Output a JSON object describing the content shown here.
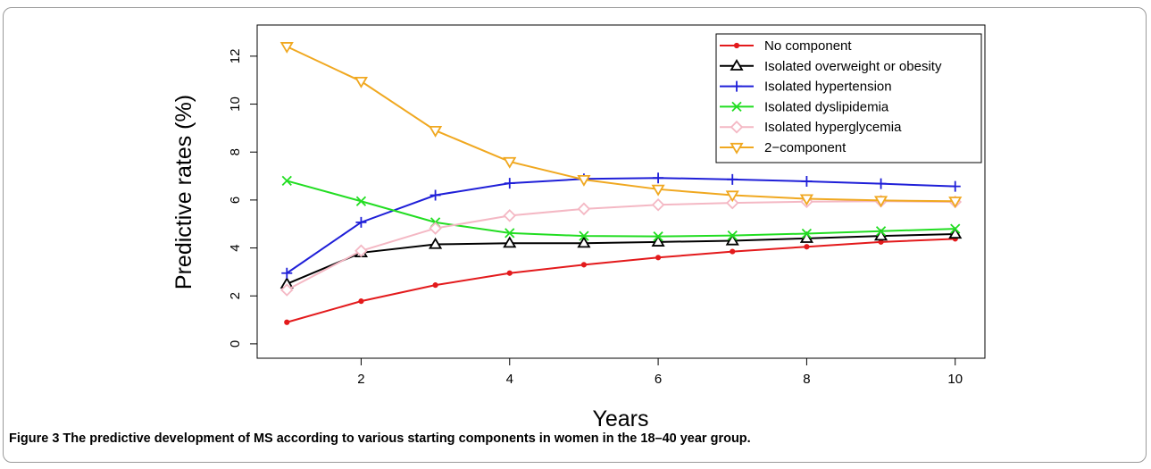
{
  "caption": "Figure 3 The predictive development of MS according to various starting components in women in the 18–40 year group.",
  "chart_data": {
    "type": "line",
    "title": "",
    "xlabel": "Years",
    "ylabel": "Predictive rates (%)",
    "xlim": [
      0.6,
      10.4
    ],
    "ylim": [
      -0.6,
      13.3
    ],
    "xticks": [
      2,
      4,
      6,
      8,
      10
    ],
    "yticks": [
      0,
      2,
      4,
      6,
      8,
      10,
      12
    ],
    "grid": false,
    "legend_position": "top-right",
    "x": [
      1,
      2,
      3,
      4,
      5,
      6,
      7,
      8,
      9,
      10
    ],
    "series": [
      {
        "name": "No component",
        "color": "#e31a1c",
        "marker": "dot",
        "values": [
          0.9,
          1.78,
          2.45,
          2.95,
          3.3,
          3.6,
          3.85,
          4.05,
          4.25,
          4.38
        ]
      },
      {
        "name": "Isolated overweight or obesity",
        "color": "#000000",
        "marker": "triangle-up",
        "values": [
          2.5,
          3.8,
          4.15,
          4.2,
          4.2,
          4.25,
          4.3,
          4.4,
          4.5,
          4.58
        ]
      },
      {
        "name": "Isolated hypertension",
        "color": "#1f1fd8",
        "marker": "plus",
        "values": [
          2.95,
          5.07,
          6.2,
          6.7,
          6.88,
          6.92,
          6.86,
          6.78,
          6.68,
          6.57
        ]
      },
      {
        "name": "Isolated dyslipidemia",
        "color": "#22dd22",
        "marker": "cross",
        "values": [
          6.8,
          5.95,
          5.07,
          4.62,
          4.5,
          4.48,
          4.52,
          4.6,
          4.7,
          4.8
        ]
      },
      {
        "name": "Isolated hyperglycemia",
        "color": "#f4b8c4",
        "marker": "diamond",
        "values": [
          2.25,
          3.88,
          4.82,
          5.35,
          5.63,
          5.8,
          5.88,
          5.93,
          5.95,
          5.92
        ]
      },
      {
        "name": "2−component",
        "color": "#f0a820",
        "marker": "triangle-down",
        "values": [
          12.4,
          10.95,
          8.9,
          7.6,
          6.85,
          6.45,
          6.2,
          6.05,
          5.98,
          5.95
        ]
      }
    ]
  }
}
